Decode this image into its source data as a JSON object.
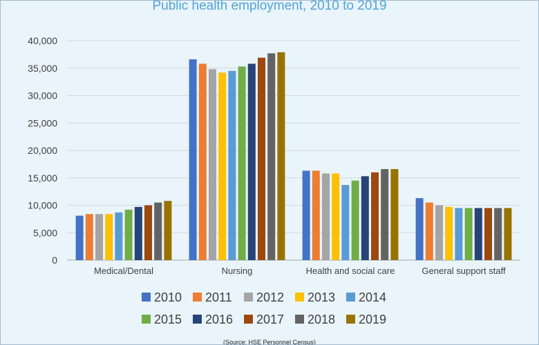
{
  "title": "Public health employment, 2010 to 2019",
  "source": "(Source: HSE Personnel Census)",
  "chart_data": {
    "type": "bar",
    "title": "Public health employment, 2010 to 2019",
    "categories": [
      "Medical/Dental",
      "Nursing",
      "Health and social care",
      "General support staff"
    ],
    "ylim": [
      0,
      40000
    ],
    "yticks": [
      0,
      5000,
      10000,
      15000,
      20000,
      25000,
      30000,
      35000,
      40000
    ],
    "ytick_labels": [
      "0",
      "5,000",
      "10,000",
      "15,000",
      "20,000",
      "25,000",
      "30,000",
      "35,000",
      "40,000"
    ],
    "grid": true,
    "legend_position": "bottom",
    "series": [
      {
        "name": "2010",
        "color": "#4472c4",
        "values": [
          8100,
          36600,
          16300,
          11300
        ]
      },
      {
        "name": "2011",
        "color": "#ed7d31",
        "values": [
          8400,
          35800,
          16300,
          10500
        ]
      },
      {
        "name": "2012",
        "color": "#a5a5a5",
        "values": [
          8400,
          34800,
          15800,
          10000
        ]
      },
      {
        "name": "2013",
        "color": "#ffc000",
        "values": [
          8400,
          34200,
          15800,
          9700
        ]
      },
      {
        "name": "2014",
        "color": "#5b9bd5",
        "values": [
          8700,
          34500,
          13700,
          9500
        ]
      },
      {
        "name": "2015",
        "color": "#70ad47",
        "values": [
          9200,
          35300,
          14500,
          9500
        ]
      },
      {
        "name": "2016",
        "color": "#264478",
        "values": [
          9700,
          35800,
          15300,
          9500
        ]
      },
      {
        "name": "2017",
        "color": "#9e480e",
        "values": [
          10000,
          36900,
          16000,
          9500
        ]
      },
      {
        "name": "2018",
        "color": "#636363",
        "values": [
          10500,
          37700,
          16600,
          9500
        ]
      },
      {
        "name": "2019",
        "color": "#997300",
        "values": [
          10800,
          37900,
          16600,
          9500
        ]
      }
    ]
  }
}
